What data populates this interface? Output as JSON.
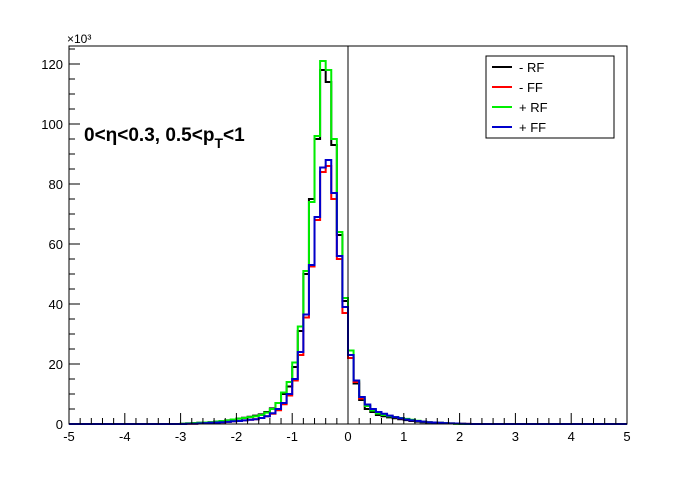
{
  "chart_data": {
    "type": "line",
    "title": "",
    "xlabel": "",
    "ylabel": "",
    "y_multiplier": "×10³",
    "annotation": {
      "prefix": "0<η<0.3, 0.5<p",
      "subscript": "T",
      "suffix": "<1"
    },
    "xlim": [
      -5,
      5
    ],
    "ylim": [
      0,
      126
    ],
    "x_ticks": [
      "-5",
      "-4",
      "-3",
      "-2",
      "-1",
      "0",
      "1",
      "2",
      "3",
      "4",
      "5"
    ],
    "y_ticks": [
      "0",
      "20",
      "40",
      "60",
      "80",
      "100",
      "120"
    ],
    "legend_position": "top-right",
    "vertical_line_x": 0,
    "bin_edges": [
      -5.0,
      -4.9,
      -4.8,
      -4.7,
      -4.6,
      -4.5,
      -4.4,
      -4.3,
      -4.2,
      -4.1,
      -4.0,
      -3.9,
      -3.8,
      -3.7,
      -3.6,
      -3.5,
      -3.4,
      -3.3,
      -3.2,
      -3.1,
      -3.0,
      -2.9,
      -2.8,
      -2.7,
      -2.6,
      -2.5,
      -2.4,
      -2.3,
      -2.2,
      -2.1,
      -2.0,
      -1.9,
      -1.8,
      -1.7,
      -1.6,
      -1.5,
      -1.4,
      -1.3,
      -1.2,
      -1.1,
      -1.0,
      -0.9,
      -0.8,
      -0.7,
      -0.6,
      -0.5,
      -0.4,
      -0.3,
      -0.2,
      -0.1,
      0.0,
      0.1,
      0.2,
      0.3,
      0.4,
      0.5,
      0.6,
      0.7,
      0.8,
      0.9,
      1.0,
      1.1,
      1.2,
      1.3,
      1.4,
      1.5,
      1.6,
      1.7,
      1.8,
      1.9,
      2.0,
      2.1,
      2.2,
      2.3,
      2.4,
      2.5,
      2.6,
      2.7,
      2.8,
      2.9,
      3.0,
      3.1,
      3.2,
      3.3,
      3.4,
      3.5,
      3.6,
      3.7,
      3.8,
      3.9,
      4.0,
      4.1,
      4.2,
      4.3,
      4.4,
      4.5,
      4.6,
      4.7,
      4.8,
      4.9,
      5.0
    ],
    "series": [
      {
        "name": "- RF",
        "color": "#000000",
        "values": [
          0,
          0,
          0,
          0,
          0,
          0,
          0,
          0,
          0,
          0,
          0,
          0,
          0,
          0,
          0,
          0,
          0,
          0,
          0,
          0,
          0.1,
          0.2,
          0.3,
          0.4,
          0.5,
          0.6,
          0.8,
          1.0,
          1.2,
          1.5,
          1.8,
          2.1,
          2.4,
          2.8,
          3.2,
          4.0,
          5.2,
          7.0,
          10.0,
          12.5,
          19.0,
          31.0,
          50.0,
          75.0,
          95.0,
          118.0,
          114.0,
          93.0,
          63.0,
          41.0,
          23.0,
          13.5,
          8.0,
          5.0,
          4.0,
          3.0,
          2.6,
          2.2,
          1.9,
          1.6,
          1.3,
          1.0,
          0.8,
          0.6,
          0.5,
          0.4,
          0.3,
          0.2,
          0.15,
          0.1,
          0.05,
          0,
          0,
          0,
          0,
          0,
          0,
          0,
          0,
          0,
          0,
          0,
          0,
          0,
          0,
          0,
          0,
          0,
          0,
          0,
          0,
          0,
          0,
          0,
          0,
          0,
          0,
          0,
          0,
          0
        ]
      },
      {
        "name": "- FF",
        "color": "#ff0000",
        "values": [
          0,
          0,
          0,
          0,
          0,
          0,
          0,
          0,
          0,
          0,
          0,
          0,
          0,
          0,
          0,
          0,
          0,
          0,
          0,
          0,
          0,
          0.1,
          0.1,
          0.2,
          0.3,
          0.4,
          0.5,
          0.6,
          0.7,
          0.9,
          1.0,
          1.2,
          1.4,
          1.6,
          2.0,
          2.6,
          3.4,
          4.6,
          6.6,
          9.5,
          14.5,
          23.0,
          35.5,
          52.5,
          68.0,
          84.0,
          86.0,
          75.0,
          55.0,
          37.0,
          22.0,
          14.0,
          8.5,
          6.0,
          4.5,
          3.8,
          3.2,
          2.7,
          2.3,
          1.9,
          1.5,
          1.2,
          1.0,
          0.8,
          0.6,
          0.5,
          0.4,
          0.3,
          0.2,
          0.15,
          0.1,
          0.05,
          0,
          0,
          0,
          0,
          0,
          0,
          0,
          0,
          0,
          0,
          0,
          0,
          0,
          0,
          0,
          0,
          0,
          0,
          0,
          0,
          0,
          0,
          0,
          0,
          0,
          0,
          0,
          0
        ]
      },
      {
        "name": "+ RF",
        "color": "#00ee00",
        "values": [
          0,
          0,
          0,
          0,
          0,
          0,
          0,
          0,
          0,
          0,
          0,
          0,
          0,
          0,
          0,
          0,
          0,
          0,
          0,
          0,
          0.1,
          0.2,
          0.3,
          0.4,
          0.5,
          0.6,
          0.8,
          1.0,
          1.2,
          1.5,
          1.8,
          2.0,
          2.3,
          2.6,
          3.0,
          3.8,
          5.0,
          7.0,
          10.5,
          14.0,
          20.5,
          32.5,
          51.0,
          74.0,
          96.0,
          121.0,
          118.0,
          95.0,
          64.0,
          42.0,
          24.5,
          14.5,
          9.0,
          6.0,
          4.5,
          3.5,
          3.0,
          2.6,
          2.3,
          2.0,
          1.7,
          1.4,
          1.1,
          0.8,
          0.6,
          0.5,
          0.4,
          0.3,
          0.2,
          0.1,
          0.05,
          0,
          0,
          0,
          0,
          0,
          0,
          0,
          0,
          0,
          0,
          0,
          0,
          0,
          0,
          0,
          0,
          0,
          0,
          0,
          0,
          0,
          0,
          0,
          0,
          0,
          0,
          0,
          0,
          0
        ]
      },
      {
        "name": "+ FF",
        "color": "#0000cc",
        "values": [
          0,
          0,
          0,
          0,
          0,
          0,
          0,
          0,
          0,
          0,
          0,
          0,
          0,
          0,
          0,
          0,
          0,
          0,
          0,
          0,
          0,
          0.1,
          0.1,
          0.2,
          0.3,
          0.4,
          0.5,
          0.6,
          0.7,
          0.9,
          1.0,
          1.2,
          1.4,
          1.6,
          2.0,
          2.6,
          3.6,
          5.0,
          7.0,
          10.0,
          15.0,
          24.0,
          36.5,
          53.0,
          69.0,
          85.5,
          88.0,
          77.0,
          56.0,
          39.0,
          23.0,
          14.5,
          9.0,
          6.5,
          5.0,
          4.0,
          3.4,
          2.8,
          2.3,
          1.9,
          1.5,
          1.2,
          1.0,
          0.8,
          0.6,
          0.5,
          0.4,
          0.3,
          0.2,
          0.15,
          0.1,
          0.05,
          0,
          0,
          0,
          0,
          0,
          0,
          0,
          0,
          0,
          0,
          0,
          0,
          0,
          0,
          0,
          0,
          0,
          0,
          0,
          0,
          0,
          0,
          0,
          0,
          0,
          0,
          0,
          0
        ]
      }
    ]
  }
}
